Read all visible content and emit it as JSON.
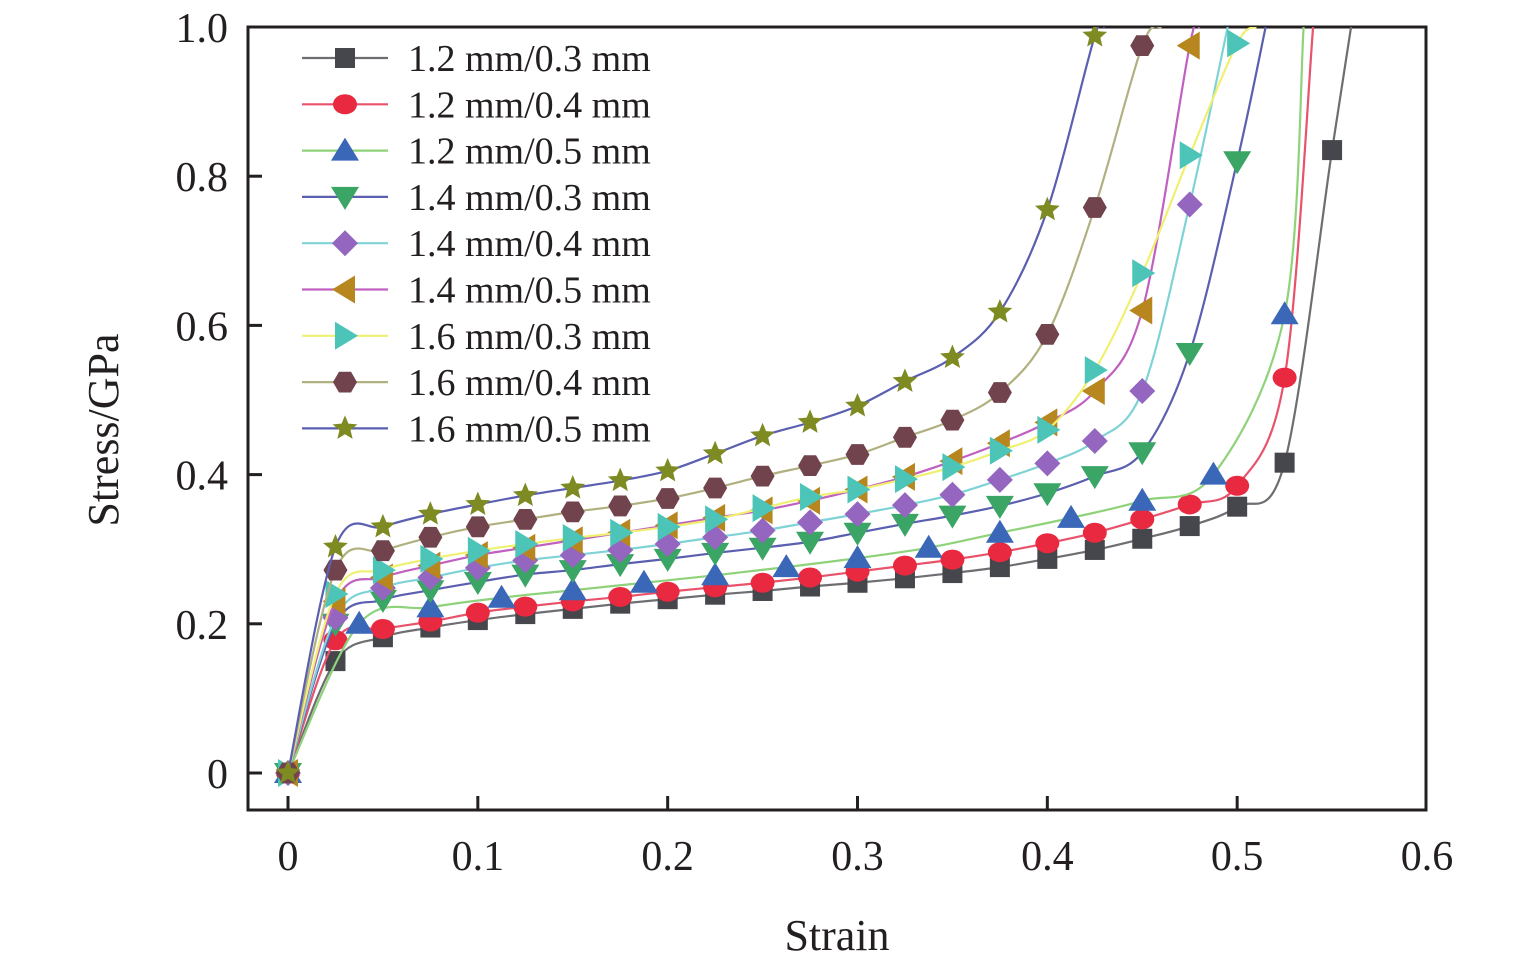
{
  "chart_data": {
    "type": "line",
    "title": "",
    "xlabel": "Strain",
    "ylabel": "Stress/GPa",
    "xlim": [
      0,
      0.6
    ],
    "ylim": [
      0,
      1.0
    ],
    "xticks": [
      0,
      0.1,
      0.2,
      0.3,
      0.4,
      0.5,
      0.6
    ],
    "xtick_labels": [
      "0",
      "0.1",
      "0.2",
      "0.3",
      "0.4",
      "0.5",
      "0.6"
    ],
    "yticks": [
      0,
      0.2,
      0.4,
      0.6,
      0.8,
      1.0
    ],
    "ytick_labels": [
      "0",
      "0.2",
      "0.4",
      "0.6",
      "0.8",
      "1.0"
    ],
    "grid": false,
    "legend_position": "top-left",
    "series": [
      {
        "name": "1.2 mm/0.3 mm",
        "marker": "square",
        "marker_color": "#46474c",
        "line_color": "#6d6e71",
        "x": [
          0,
          0.025,
          0.05,
          0.075,
          0.1,
          0.125,
          0.15,
          0.175,
          0.2,
          0.225,
          0.25,
          0.275,
          0.3,
          0.325,
          0.35,
          0.375,
          0.4,
          0.425,
          0.45,
          0.475,
          0.5,
          0.525,
          0.55,
          0.56
        ],
        "y": [
          0,
          0.15,
          0.182,
          0.195,
          0.205,
          0.213,
          0.22,
          0.227,
          0.233,
          0.239,
          0.244,
          0.25,
          0.255,
          0.261,
          0.268,
          0.276,
          0.287,
          0.299,
          0.314,
          0.331,
          0.357,
          0.416,
          0.835,
          1.0
        ]
      },
      {
        "name": "1.2 mm/0.4 mm",
        "marker": "circle",
        "marker_color": "#e8293f",
        "line_color": "#e8526a",
        "x": [
          0,
          0.025,
          0.05,
          0.075,
          0.1,
          0.125,
          0.15,
          0.175,
          0.2,
          0.225,
          0.25,
          0.275,
          0.3,
          0.325,
          0.35,
          0.375,
          0.4,
          0.425,
          0.45,
          0.475,
          0.5,
          0.525,
          0.54
        ],
        "y": [
          0,
          0.178,
          0.193,
          0.203,
          0.215,
          0.223,
          0.23,
          0.236,
          0.243,
          0.249,
          0.255,
          0.262,
          0.27,
          0.278,
          0.286,
          0.296,
          0.308,
          0.322,
          0.34,
          0.36,
          0.385,
          0.53,
          1.0
        ]
      },
      {
        "name": "1.2 mm/0.5 mm",
        "marker": "triangle-up",
        "marker_color": "#3a67b8",
        "line_color": "#8fd27a",
        "x": [
          0,
          0.0375,
          0.075,
          0.1125,
          0.15,
          0.1875,
          0.225,
          0.2625,
          0.3,
          0.3375,
          0.375,
          0.4125,
          0.45,
          0.4875,
          0.525,
          0.535
        ],
        "y": [
          0,
          0.2,
          0.222,
          0.235,
          0.245,
          0.255,
          0.265,
          0.276,
          0.288,
          0.302,
          0.322,
          0.342,
          0.365,
          0.4,
          0.615,
          1.0
        ]
      },
      {
        "name": "1.4 mm/0.3 mm",
        "marker": "triangle-down",
        "marker_color": "#3aa565",
        "line_color": "#5a5fb0",
        "x": [
          0,
          0.025,
          0.05,
          0.075,
          0.1,
          0.125,
          0.15,
          0.175,
          0.2,
          0.225,
          0.25,
          0.275,
          0.3,
          0.325,
          0.35,
          0.375,
          0.4,
          0.425,
          0.45,
          0.475,
          0.5,
          0.515
        ],
        "y": [
          0,
          0.2,
          0.232,
          0.245,
          0.256,
          0.266,
          0.272,
          0.28,
          0.287,
          0.295,
          0.302,
          0.31,
          0.322,
          0.334,
          0.345,
          0.358,
          0.375,
          0.398,
          0.43,
          0.563,
          0.82,
          1.0
        ]
      },
      {
        "name": "1.4 mm/0.4 mm",
        "marker": "diamond",
        "marker_color": "#9466c0",
        "line_color": "#7fd3d6",
        "x": [
          0,
          0.025,
          0.05,
          0.075,
          0.1,
          0.125,
          0.15,
          0.175,
          0.2,
          0.225,
          0.25,
          0.275,
          0.3,
          0.325,
          0.35,
          0.375,
          0.4,
          0.425,
          0.45,
          0.475,
          0.495
        ],
        "y": [
          0,
          0.208,
          0.248,
          0.262,
          0.275,
          0.285,
          0.292,
          0.299,
          0.307,
          0.316,
          0.325,
          0.336,
          0.347,
          0.359,
          0.373,
          0.393,
          0.415,
          0.445,
          0.512,
          0.762,
          1.0
        ]
      },
      {
        "name": "1.4 mm/0.5 mm",
        "marker": "triangle-left",
        "marker_color": "#b8861e",
        "line_color": "#c060c0",
        "x": [
          0,
          0.025,
          0.05,
          0.075,
          0.1,
          0.125,
          0.15,
          0.175,
          0.2,
          0.225,
          0.25,
          0.275,
          0.3,
          0.325,
          0.35,
          0.375,
          0.4,
          0.425,
          0.45,
          0.475,
          0.48
        ],
        "y": [
          0,
          0.23,
          0.262,
          0.278,
          0.292,
          0.302,
          0.312,
          0.322,
          0.332,
          0.342,
          0.352,
          0.365,
          0.38,
          0.397,
          0.418,
          0.442,
          0.47,
          0.512,
          0.62,
          0.975,
          1.0
        ]
      },
      {
        "name": "1.6 mm/0.3 mm",
        "marker": "triangle-right",
        "marker_color": "#4cc4b8",
        "line_color": "#f0f070",
        "x": [
          0,
          0.025,
          0.05,
          0.075,
          0.1,
          0.125,
          0.15,
          0.175,
          0.2,
          0.225,
          0.25,
          0.275,
          0.3,
          0.325,
          0.35,
          0.375,
          0.4,
          0.425,
          0.45,
          0.475,
          0.5,
          0.51
        ],
        "y": [
          0,
          0.24,
          0.272,
          0.287,
          0.298,
          0.307,
          0.315,
          0.322,
          0.33,
          0.34,
          0.355,
          0.37,
          0.38,
          0.394,
          0.41,
          0.432,
          0.46,
          0.54,
          0.67,
          0.828,
          0.978,
          1.0
        ]
      },
      {
        "name": "1.6 mm/0.4 mm",
        "marker": "hexagon",
        "marker_color": "#70434d",
        "line_color": "#b0b080",
        "x": [
          0,
          0.025,
          0.05,
          0.075,
          0.1,
          0.125,
          0.15,
          0.175,
          0.2,
          0.225,
          0.25,
          0.275,
          0.3,
          0.325,
          0.35,
          0.375,
          0.4,
          0.425,
          0.45,
          0.46
        ],
        "y": [
          0,
          0.272,
          0.298,
          0.316,
          0.33,
          0.34,
          0.35,
          0.358,
          0.368,
          0.382,
          0.398,
          0.412,
          0.427,
          0.45,
          0.473,
          0.51,
          0.588,
          0.758,
          0.975,
          1.0
        ]
      },
      {
        "name": "1.6 mm/0.5 mm",
        "marker": "star",
        "marker_color": "#7e8a22",
        "line_color": "#5a5fb0",
        "x": [
          0,
          0.025,
          0.05,
          0.075,
          0.1,
          0.125,
          0.15,
          0.175,
          0.2,
          0.225,
          0.25,
          0.275,
          0.3,
          0.325,
          0.35,
          0.375,
          0.4,
          0.425,
          0.43
        ],
        "y": [
          0,
          0.303,
          0.33,
          0.347,
          0.36,
          0.372,
          0.382,
          0.392,
          0.405,
          0.428,
          0.452,
          0.47,
          0.492,
          0.525,
          0.557,
          0.618,
          0.755,
          0.988,
          1.0
        ]
      }
    ]
  }
}
